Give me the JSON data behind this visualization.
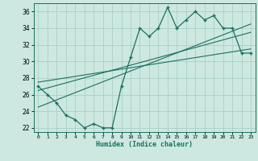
{
  "xlabel": "Humidex (Indice chaleur)",
  "bg_color": "#cce8e0",
  "grid_color": "#aacfc8",
  "line_color": "#1a7060",
  "xlim": [
    -0.5,
    23.5
  ],
  "ylim": [
    21.5,
    37.0
  ],
  "xticks": [
    0,
    1,
    2,
    3,
    4,
    5,
    6,
    7,
    8,
    9,
    10,
    11,
    12,
    13,
    14,
    15,
    16,
    17,
    18,
    19,
    20,
    21,
    22,
    23
  ],
  "yticks": [
    22,
    24,
    26,
    28,
    30,
    32,
    34,
    36
  ],
  "main_x": [
    0,
    1,
    2,
    3,
    4,
    5,
    6,
    7,
    8,
    9,
    10,
    11,
    12,
    13,
    14,
    15,
    16,
    17,
    18,
    19,
    20,
    21,
    22,
    23
  ],
  "main_y": [
    27,
    26,
    25,
    23.5,
    23,
    22,
    22.5,
    22,
    22,
    27.0,
    30.5,
    34,
    33,
    34.0,
    36.5,
    34.0,
    35.0,
    36.0,
    35.0,
    35.5,
    34.0,
    34.0,
    31.0,
    31.0
  ],
  "line1_x": [
    0,
    23
  ],
  "line1_y": [
    24.5,
    34.5
  ],
  "line2_x": [
    0,
    23
  ],
  "line2_y": [
    26.5,
    33.5
  ],
  "line3_x": [
    0,
    23
  ],
  "line3_y": [
    27.5,
    31.5
  ]
}
